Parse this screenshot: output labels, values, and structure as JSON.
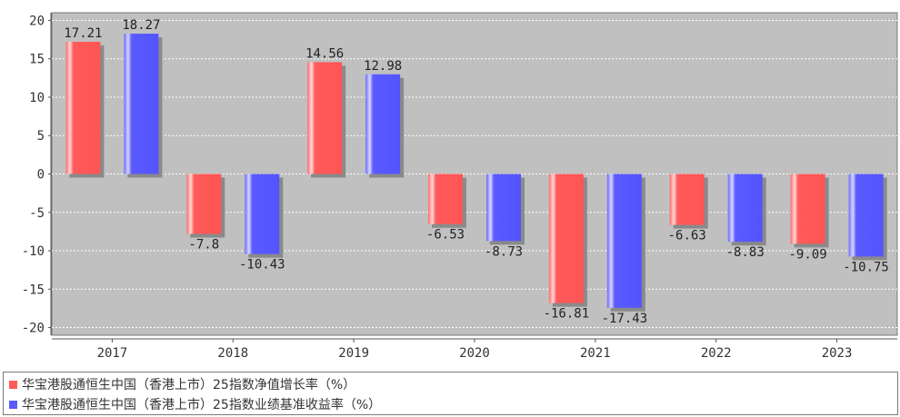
{
  "chart_data": {
    "type": "bar",
    "categories": [
      "2017",
      "2018",
      "2019",
      "2020",
      "2021",
      "2022",
      "2023"
    ],
    "series": [
      {
        "name": "华宝港股通恒生中国（香港上市）25指数净值增长率（%）",
        "color": "#ff5a5a",
        "values": [
          17.21,
          -7.8,
          14.56,
          -6.53,
          -16.81,
          -6.63,
          -9.09
        ]
      },
      {
        "name": "华宝港股通恒生中国（香港上市）25指数业绩基准收益率（%）",
        "color": "#5a5aff",
        "values": [
          18.27,
          -10.43,
          12.98,
          -8.73,
          -17.43,
          -8.83,
          -10.75
        ]
      }
    ],
    "ylim": [
      -21,
      21
    ],
    "yticks": [
      20,
      15,
      10,
      5,
      0,
      -5,
      -10,
      -15,
      -20
    ],
    "grid": true,
    "legend_position": "bottom"
  }
}
